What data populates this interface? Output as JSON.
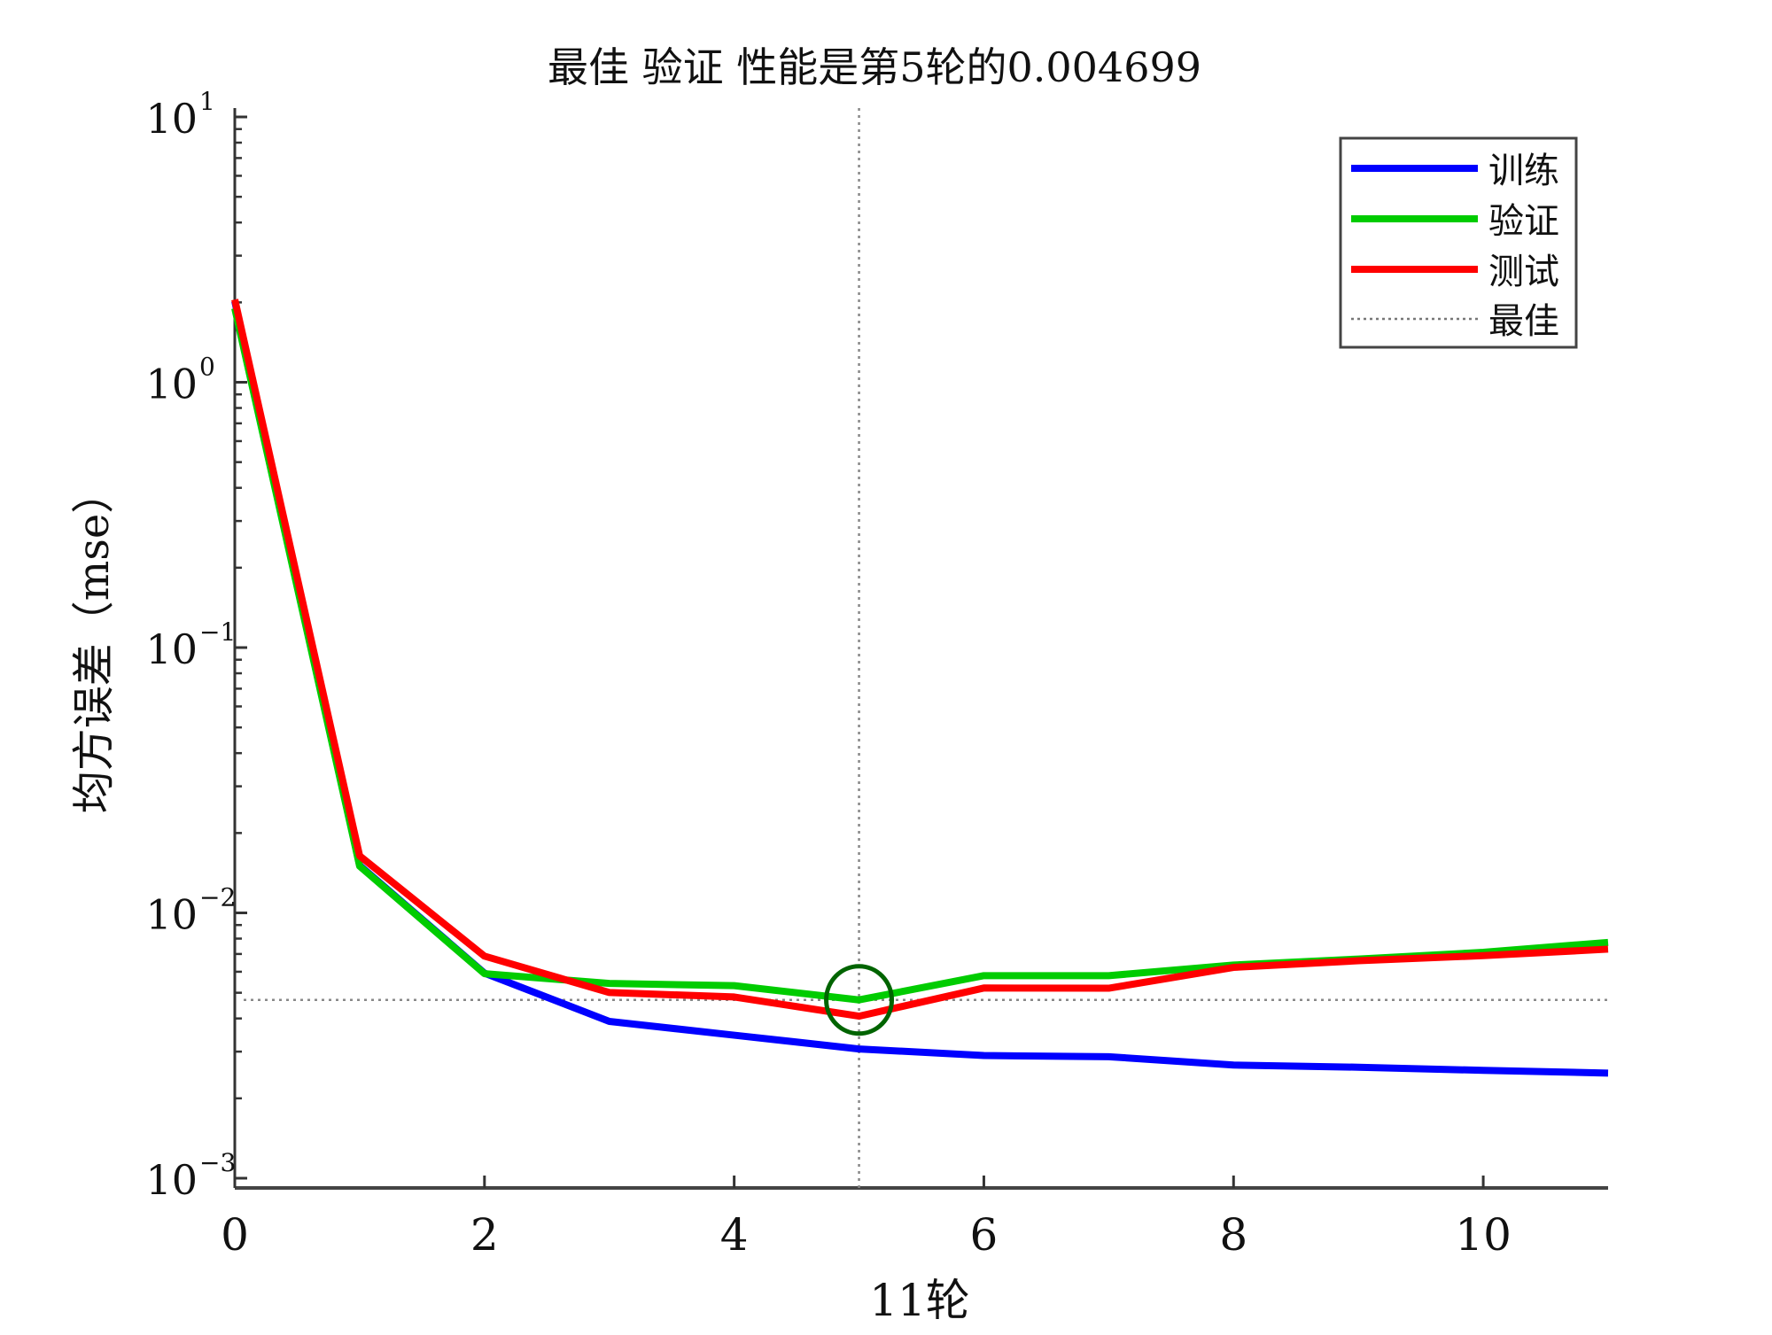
{
  "chart_data": {
    "type": "line",
    "title": "最佳 验证 性能是第5轮的0.004699",
    "xlabel": "11轮",
    "ylabel": "均方误差（mse）",
    "xlim": [
      0,
      11
    ],
    "ylim": [
      0.001,
      10
    ],
    "yscale": "log",
    "x_ticks": [
      0,
      2,
      4,
      6,
      8,
      10
    ],
    "x_tick_labels": [
      "0",
      "2",
      "4",
      "6",
      "8",
      "10"
    ],
    "y_ticks": [
      {
        "base": "10",
        "exp": "1"
      },
      {
        "base": "10",
        "exp": "0"
      },
      {
        "base": "10",
        "exp": "−1"
      },
      {
        "base": "10",
        "exp": "−2"
      },
      {
        "base": "10",
        "exp": "−3"
      }
    ],
    "grid": false,
    "legend_position": "top-right",
    "x": [
      0,
      1,
      2,
      3,
      4,
      5,
      6,
      7,
      8,
      9,
      10,
      11
    ],
    "series": [
      {
        "name": "训练",
        "color": "#0000ff",
        "values": [
          2.02,
          0.0151,
          0.00593,
          0.0039,
          0.00346,
          0.00307,
          0.0029,
          0.00287,
          0.00267,
          0.00262,
          0.00255,
          0.00249
        ]
      },
      {
        "name": "验证",
        "color": "#00cc00",
        "values": [
          1.9,
          0.015,
          0.0059,
          0.00542,
          0.00532,
          0.004699,
          0.0058,
          0.0058,
          0.00636,
          0.0067,
          0.0071,
          0.00774
        ]
      },
      {
        "name": "测试",
        "color": "#ff0000",
        "values": [
          2.05,
          0.0164,
          0.00687,
          0.00501,
          0.00482,
          0.00408,
          0.00521,
          0.0052,
          0.00623,
          0.0066,
          0.0069,
          0.0073
        ]
      }
    ],
    "best": {
      "name": "最佳",
      "x": 5,
      "y": 0.004699,
      "marker_color": "#006400"
    }
  }
}
